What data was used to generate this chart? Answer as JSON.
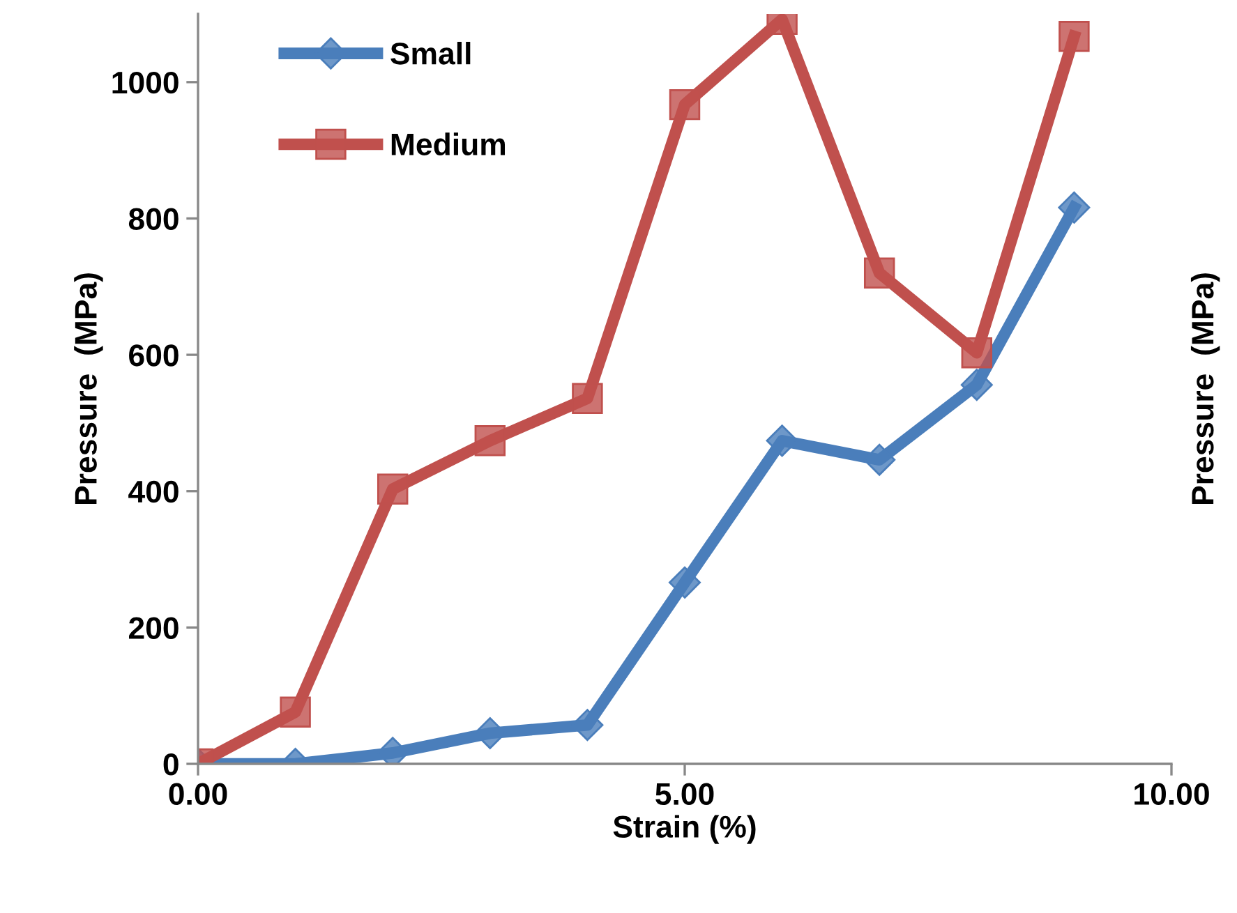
{
  "chart_data": {
    "type": "line",
    "xlabel": "Strain (%)",
    "ylabel": "Pressure  (MPa)",
    "y2label": "Pressure  (MPa)",
    "x": [
      0,
      1,
      2,
      3,
      4,
      5,
      6,
      7,
      8,
      9
    ],
    "series": [
      {
        "name": "Small",
        "color": "#4a7ebb",
        "marker": "diamond",
        "values": [
          0,
          0,
          16,
          45,
          57,
          266,
          474,
          446,
          556,
          816
        ]
      },
      {
        "name": "Medium",
        "color": "#c0504d",
        "marker": "square",
        "values": [
          0,
          76,
          403,
          474,
          536,
          967,
          1092,
          720,
          603,
          1067
        ]
      }
    ],
    "xlim": [
      0,
      10
    ],
    "xticks": [
      {
        "value": 0,
        "label": "0.00"
      },
      {
        "value": 5,
        "label": "5.00"
      },
      {
        "value": 10,
        "label": "10.00"
      }
    ],
    "ylim": [
      0,
      1100
    ],
    "yticks": [
      0,
      200,
      400,
      600,
      800,
      1000
    ],
    "grid": false,
    "legend": "top left"
  }
}
